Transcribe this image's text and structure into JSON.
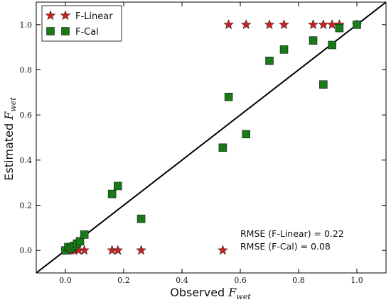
{
  "chart_data": {
    "type": "scatter",
    "title": "",
    "xlabel": {
      "text": "Observed ",
      "var": "F",
      "sub": "wet"
    },
    "ylabel": {
      "text": "Estimated ",
      "var": "F",
      "sub": "wet"
    },
    "xlim": [
      -0.1,
      1.1
    ],
    "ylim": [
      -0.1,
      1.1
    ],
    "xticks": [
      0.0,
      0.2,
      0.4,
      0.6,
      0.8,
      1.0
    ],
    "yticks": [
      0.0,
      0.2,
      0.4,
      0.6,
      0.8,
      1.0
    ],
    "xtick_labels": [
      "0.0",
      "0.2",
      "0.4",
      "0.6",
      "0.8",
      "1.0"
    ],
    "ytick_labels": [
      "0.0",
      "0.2",
      "0.4",
      "0.6",
      "0.8",
      "1.0"
    ],
    "grid": false,
    "legend_position": "top-left",
    "reference_line": {
      "from": [
        -0.1,
        -0.1
      ],
      "to": [
        1.1,
        1.1
      ],
      "color": "#000000"
    },
    "series": [
      {
        "name": "F-Linear",
        "marker": "star",
        "color": "#cc2222",
        "points": [
          [
            0.0,
            0.0
          ],
          [
            0.01,
            0.0
          ],
          [
            0.02,
            0.0
          ],
          [
            0.03,
            0.0
          ],
          [
            0.045,
            0.0
          ],
          [
            0.065,
            0.0
          ],
          [
            0.16,
            0.0
          ],
          [
            0.18,
            0.0
          ],
          [
            0.26,
            0.0
          ],
          [
            0.54,
            0.0
          ],
          [
            0.56,
            1.0
          ],
          [
            0.62,
            1.0
          ],
          [
            0.7,
            1.0
          ],
          [
            0.75,
            1.0
          ],
          [
            0.85,
            1.0
          ],
          [
            0.885,
            1.0
          ],
          [
            0.915,
            1.0
          ],
          [
            0.94,
            1.0
          ],
          [
            1.0,
            1.0
          ]
        ]
      },
      {
        "name": "F-Cal",
        "marker": "square",
        "color": "#1a7a1a",
        "points": [
          [
            0.0,
            0.0
          ],
          [
            0.01,
            0.015
          ],
          [
            0.02,
            0.01
          ],
          [
            0.03,
            0.02
          ],
          [
            0.04,
            0.03
          ],
          [
            0.05,
            0.04
          ],
          [
            0.065,
            0.07
          ],
          [
            0.16,
            0.25
          ],
          [
            0.18,
            0.285
          ],
          [
            0.26,
            0.14
          ],
          [
            0.54,
            0.455
          ],
          [
            0.56,
            0.68
          ],
          [
            0.62,
            0.515
          ],
          [
            0.7,
            0.84
          ],
          [
            0.75,
            0.89
          ],
          [
            0.85,
            0.93
          ],
          [
            0.885,
            0.735
          ],
          [
            0.915,
            0.91
          ],
          [
            0.94,
            0.985
          ],
          [
            1.0,
            1.0
          ]
        ]
      }
    ],
    "annotations": [
      "RMSE (F-Linear) = 0.22",
      "RMSE (F-Cal) = 0.08"
    ]
  }
}
